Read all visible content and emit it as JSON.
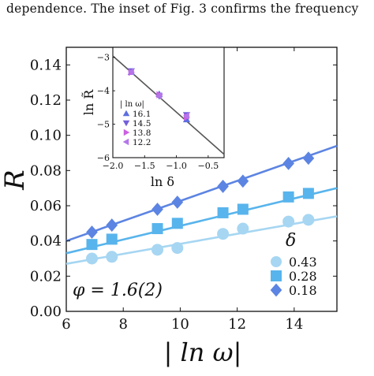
{
  "caption": "dependence. The inset of Fig. 3 confirms the frequency",
  "chart_data": [
    {
      "type": "scatter",
      "panel": "main",
      "xlabel": "| ln ω|",
      "ylabel": "R",
      "xlim": [
        6,
        15.5
      ],
      "ylim": [
        0,
        0.15
      ],
      "xticks": [
        "6",
        "8",
        "10",
        "12",
        "14"
      ],
      "xtick_values": [
        6,
        8,
        10,
        12,
        14
      ],
      "yticks": [
        "0.00",
        "0.02",
        "0.04",
        "0.06",
        "0.08",
        "0.10",
        "0.12",
        "0.14"
      ],
      "ytick_values": [
        0,
        0.02,
        0.04,
        0.06,
        0.08,
        0.1,
        0.12,
        0.14
      ],
      "grid": false,
      "legend_title": "δ",
      "legend_position": "lower-right",
      "annotation": "φ = 1.6(2)",
      "series": [
        {
          "name": "0.43",
          "marker": "circle",
          "color": "#a6d6f2",
          "x": [
            6.9,
            7.6,
            9.2,
            9.9,
            11.5,
            12.2,
            13.8,
            14.5
          ],
          "y": [
            0.03,
            0.031,
            0.035,
            0.036,
            0.044,
            0.047,
            0.051,
            0.052
          ],
          "fit": [
            [
              6,
              0.027
            ],
            [
              15.5,
              0.054
            ]
          ]
        },
        {
          "name": "0.28",
          "marker": "square",
          "color": "#58b4ec",
          "x": [
            6.9,
            7.6,
            9.2,
            9.9,
            11.5,
            12.2,
            13.8,
            14.5
          ],
          "y": [
            0.038,
            0.041,
            0.047,
            0.05,
            0.056,
            0.058,
            0.065,
            0.067
          ],
          "fit": [
            [
              6,
              0.033
            ],
            [
              15.5,
              0.07
            ]
          ]
        },
        {
          "name": "0.18",
          "marker": "diamond",
          "color": "#5c84e2",
          "x": [
            6.9,
            7.6,
            9.2,
            9.9,
            11.5,
            12.2,
            13.8,
            14.5
          ],
          "y": [
            0.045,
            0.049,
            0.058,
            0.062,
            0.071,
            0.074,
            0.084,
            0.087
          ],
          "fit": [
            [
              6,
              0.04
            ],
            [
              15.5,
              0.094
            ]
          ]
        }
      ]
    },
    {
      "type": "scatter",
      "panel": "inset",
      "xlabel": "ln δ",
      "ylabel": "ln R̃",
      "xlim": [
        -2.0,
        -0.25
      ],
      "ylim": [
        -6,
        -2.7
      ],
      "xticks": [
        "−2.0",
        "−1.5",
        "−1.0",
        "−0.5"
      ],
      "xtick_values": [
        -2.0,
        -1.5,
        -1.0,
        -0.5
      ],
      "yticks": [
        "−3",
        "−4",
        "−5",
        "−6"
      ],
      "ytick_values": [
        -3,
        -4,
        -5,
        -6
      ],
      "legend_title": "| ln ω|",
      "legend_position": "left",
      "fit": [
        [
          -2.0,
          -2.96
        ],
        [
          -0.25,
          -5.9
        ]
      ],
      "series": [
        {
          "name": "16.1",
          "marker": "triangle-up",
          "color": "#5c6ee0",
          "x": [
            -1.71,
            -1.27,
            -0.84
          ],
          "y": [
            -3.44,
            -4.1,
            -4.86
          ]
        },
        {
          "name": "14.5",
          "marker": "triangle-down",
          "color": "#7560dc",
          "x": [
            -1.71,
            -1.27,
            -0.84
          ],
          "y": [
            -3.41,
            -4.16,
            -4.72
          ]
        },
        {
          "name": "13.8",
          "marker": "triangle-right",
          "color": "#cc60e2",
          "x": [
            -1.71,
            -1.27,
            -0.84
          ],
          "y": [
            -3.45,
            -4.12,
            -4.79
          ]
        },
        {
          "name": "12.2",
          "marker": "triangle-left",
          "color": "#b476ea",
          "x": [
            -1.71,
            -1.27,
            -0.84
          ],
          "y": [
            -3.43,
            -4.15,
            -4.75
          ]
        }
      ]
    }
  ]
}
